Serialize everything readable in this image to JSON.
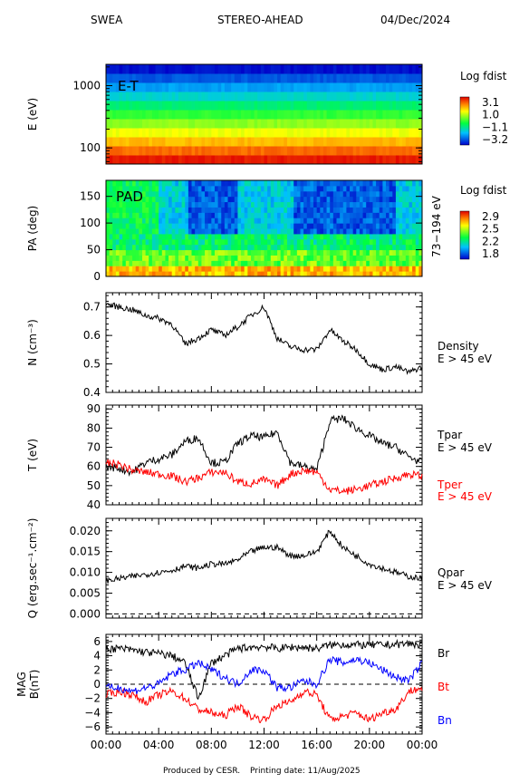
{
  "header": {
    "instrument": "SWEA",
    "spacecraft": "STEREO-AHEAD",
    "date": "04/Dec/2024"
  },
  "footer": {
    "produced": "Produced by CESR.",
    "printing": "Printing date: 11/Aug/2025"
  },
  "colors": {
    "black": "#000000",
    "red": "#ff0000",
    "blue": "#0000ff",
    "dashed": "#000000"
  },
  "chart_data": [
    {
      "type": "heatmap",
      "panel": "energy-time",
      "inset_label": "E-T",
      "ylabel": "E (eV)",
      "yscale": "log",
      "ylim": [
        55,
        2200
      ],
      "yticks": [
        {
          "value": 100,
          "label": "100"
        },
        {
          "value": 1000,
          "label": "1000"
        }
      ],
      "colorbar": {
        "title": "Log fdist",
        "ticks": [
          "3.1",
          "1.0",
          "−1.1",
          "−3.2"
        ]
      }
    },
    {
      "type": "heatmap",
      "panel": "pitch-angle",
      "inset_label": "PAD",
      "ylabel": "PA (deg)",
      "ylim": [
        0,
        180
      ],
      "yticks": [
        {
          "value": 0,
          "label": "0"
        },
        {
          "value": 50,
          "label": "50"
        },
        {
          "value": 100,
          "label": "100"
        },
        {
          "value": 150,
          "label": "150"
        }
      ],
      "energy_range_label": "73−194 eV",
      "colorbar": {
        "title": "Log fdist",
        "ticks": [
          "2.9",
          "2.5",
          "2.2",
          "1.8"
        ]
      }
    },
    {
      "type": "line",
      "panel": "density",
      "ylabel": "N (cm⁻³)",
      "ylim": [
        0.4,
        0.75
      ],
      "yticks": [
        {
          "value": 0.4,
          "label": "0.4"
        },
        {
          "value": 0.5,
          "label": "0.5"
        },
        {
          "value": 0.6,
          "label": "0.6"
        },
        {
          "value": 0.7,
          "label": "0.7"
        }
      ],
      "series": [
        {
          "name": "Density",
          "sublabel": "E > 45 eV",
          "color": "#000000",
          "x": [
            0,
            1,
            2,
            3,
            4,
            5,
            6,
            7,
            8,
            9,
            10,
            11,
            12,
            13,
            14,
            15,
            16,
            17,
            18,
            19,
            20,
            21,
            22,
            23,
            24
          ],
          "values": [
            0.71,
            0.7,
            0.69,
            0.67,
            0.66,
            0.64,
            0.57,
            0.59,
            0.62,
            0.6,
            0.63,
            0.67,
            0.7,
            0.59,
            0.56,
            0.55,
            0.55,
            0.62,
            0.58,
            0.55,
            0.5,
            0.48,
            0.49,
            0.47,
            0.49
          ]
        }
      ]
    },
    {
      "type": "line",
      "panel": "temperature",
      "ylabel": "T (eV)",
      "ylim": [
        40,
        92
      ],
      "yticks": [
        {
          "value": 40,
          "label": "40"
        },
        {
          "value": 50,
          "label": "50"
        },
        {
          "value": 60,
          "label": "60"
        },
        {
          "value": 70,
          "label": "70"
        },
        {
          "value": 80,
          "label": "80"
        },
        {
          "value": 90,
          "label": "90"
        }
      ],
      "series": [
        {
          "name": "Tpar",
          "sublabel": "E > 45 eV",
          "color": "#000000",
          "x": [
            0,
            1,
            2,
            3,
            4,
            5,
            6,
            7,
            8,
            9,
            10,
            11,
            12,
            13,
            14,
            15,
            16,
            17,
            18,
            19,
            20,
            21,
            22,
            23,
            24
          ],
          "values": [
            60,
            59,
            57,
            62,
            64,
            66,
            73,
            75,
            62,
            62,
            72,
            76,
            75,
            78,
            62,
            60,
            58,
            84,
            85,
            80,
            76,
            72,
            70,
            65,
            62
          ]
        },
        {
          "name": "Tper",
          "sublabel": "E > 45 eV",
          "color": "#ff0000",
          "x": [
            0,
            1,
            2,
            3,
            4,
            5,
            6,
            7,
            8,
            9,
            10,
            11,
            12,
            13,
            14,
            15,
            16,
            17,
            18,
            19,
            20,
            21,
            22,
            23,
            24
          ],
          "values": [
            62,
            61,
            58,
            57,
            56,
            55,
            52,
            54,
            57,
            57,
            52,
            51,
            53,
            50,
            56,
            58,
            57,
            48,
            47,
            48,
            50,
            52,
            54,
            56,
            55
          ]
        }
      ]
    },
    {
      "type": "line",
      "panel": "heat-flux",
      "ylabel": "Q (erg.sec⁻¹.cm⁻²)",
      "ylim": [
        -0.001,
        0.023
      ],
      "yticks": [
        {
          "value": 0.0,
          "label": "0.000"
        },
        {
          "value": 0.005,
          "label": "0.005"
        },
        {
          "value": 0.01,
          "label": "0.010"
        },
        {
          "value": 0.015,
          "label": "0.015"
        },
        {
          "value": 0.02,
          "label": "0.020"
        }
      ],
      "series": [
        {
          "name": "Qpar",
          "sublabel": "E > 45 eV",
          "color": "#000000",
          "x": [
            0,
            1,
            2,
            3,
            4,
            5,
            6,
            7,
            8,
            9,
            10,
            11,
            12,
            13,
            14,
            15,
            16,
            17,
            18,
            19,
            20,
            21,
            22,
            23,
            24
          ],
          "values": [
            0.008,
            0.0085,
            0.009,
            0.0095,
            0.01,
            0.0105,
            0.0115,
            0.011,
            0.012,
            0.012,
            0.013,
            0.015,
            0.016,
            0.016,
            0.014,
            0.014,
            0.015,
            0.02,
            0.016,
            0.014,
            0.012,
            0.011,
            0.01,
            0.009,
            0.0085
          ]
        }
      ]
    },
    {
      "type": "line",
      "panel": "magnetic-field",
      "ylabel": "MAG",
      "ylabel2": "B(nT)",
      "ylim": [
        -7,
        7
      ],
      "yticks": [
        {
          "value": -6,
          "label": "−6"
        },
        {
          "value": -4,
          "label": "−4"
        },
        {
          "value": -2,
          "label": "−2"
        },
        {
          "value": 0,
          "label": "0"
        },
        {
          "value": 2,
          "label": "2"
        },
        {
          "value": 4,
          "label": "4"
        },
        {
          "value": 6,
          "label": "6"
        }
      ],
      "xticks": [
        "00:00",
        "04:00",
        "08:00",
        "12:00",
        "16:00",
        "20:00",
        "00:00"
      ],
      "series": [
        {
          "name": "Br",
          "color": "#000000",
          "x": [
            0,
            1,
            2,
            3,
            4,
            5,
            6,
            7,
            8,
            9,
            10,
            11,
            12,
            13,
            14,
            15,
            16,
            17,
            18,
            19,
            20,
            21,
            22,
            23,
            24
          ],
          "values": [
            5.0,
            5.0,
            4.8,
            4.5,
            4.3,
            4.0,
            3.0,
            -2.0,
            3.0,
            4.0,
            5.0,
            5.2,
            5.3,
            5.0,
            5.2,
            5.2,
            5.0,
            5.5,
            5.6,
            5.5,
            5.5,
            5.5,
            5.6,
            5.7,
            5.5
          ]
        },
        {
          "name": "Bt",
          "color": "#ff0000",
          "x": [
            0,
            1,
            2,
            3,
            4,
            5,
            6,
            7,
            8,
            9,
            10,
            11,
            12,
            13,
            14,
            15,
            16,
            17,
            18,
            19,
            20,
            21,
            22,
            23,
            24
          ],
          "values": [
            -1.5,
            -1.0,
            -1.5,
            -2.5,
            -1.5,
            -1.0,
            -2.0,
            -3.5,
            -4.0,
            -4.5,
            -3.0,
            -4.5,
            -5.0,
            -3.0,
            -2.5,
            -1.0,
            -1.5,
            -5.0,
            -4.5,
            -4.0,
            -5.0,
            -4.0,
            -3.5,
            -1.0,
            -0.5
          ]
        },
        {
          "name": "Bn",
          "color": "#0000ff",
          "x": [
            0,
            1,
            2,
            3,
            4,
            5,
            6,
            7,
            8,
            9,
            10,
            11,
            12,
            13,
            14,
            15,
            16,
            17,
            18,
            19,
            20,
            21,
            22,
            23,
            24
          ],
          "values": [
            -0.5,
            -0.5,
            -1.0,
            -0.5,
            0.0,
            1.5,
            2.0,
            3.0,
            2.0,
            1.0,
            0.0,
            2.0,
            2.0,
            -0.5,
            -0.5,
            0.5,
            0.0,
            3.5,
            3.0,
            3.5,
            3.0,
            2.0,
            1.0,
            0.5,
            3.0
          ]
        }
      ]
    }
  ]
}
